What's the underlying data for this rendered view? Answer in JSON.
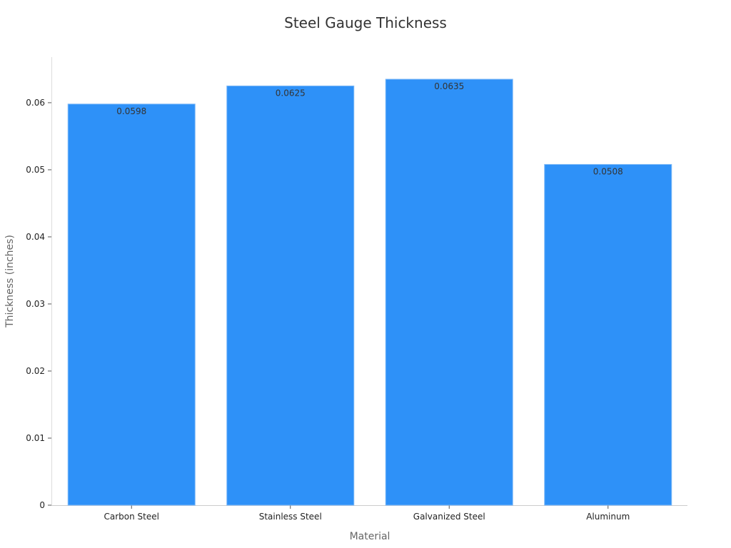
{
  "chart_data": {
    "type": "bar",
    "title": "Steel Gauge Thickness",
    "xlabel": "Material",
    "ylabel": "Thickness (inches)",
    "categories": [
      "Carbon Steel",
      "Stainless Steel",
      "Galvanized Steel",
      "Aluminum"
    ],
    "values": [
      0.0598,
      0.0625,
      0.0635,
      0.0508
    ],
    "data_labels": [
      "0.0598",
      "0.0625",
      "0.0635",
      "0.0508"
    ],
    "ylim": [
      0,
      0.0668
    ],
    "yticks": [
      0,
      0.01,
      0.02,
      0.03,
      0.04,
      0.05,
      0.06
    ],
    "ytick_labels": [
      "0",
      "0.01",
      "0.02",
      "0.03",
      "0.04",
      "0.05",
      "0.06"
    ],
    "bar_color": "#2E91F8",
    "grid": false,
    "legend": "none"
  }
}
